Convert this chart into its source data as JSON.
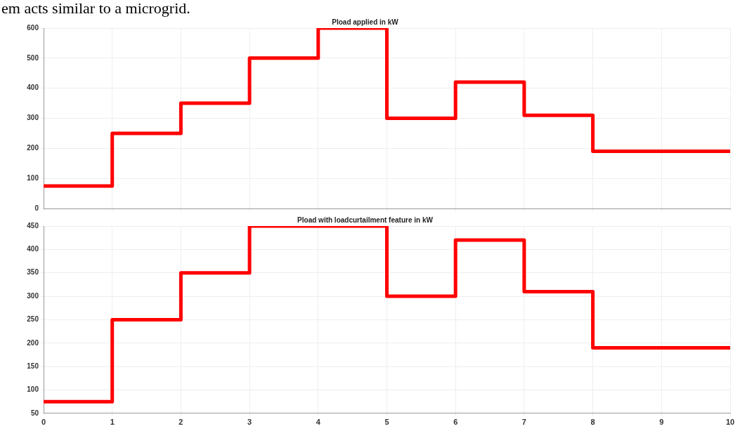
{
  "chart_data": [
    {
      "type": "step",
      "title": "Pload applied in kW",
      "annotations": [
        "em acts similar to a microgrid."
      ],
      "x": [
        0,
        1,
        2,
        3,
        4,
        5,
        6,
        7,
        8,
        10
      ],
      "series": [
        {
          "color": "#ff0000",
          "values": [
            75,
            250,
            350,
            500,
            600,
            300,
            420,
            310,
            190,
            190
          ]
        }
      ],
      "xlim": [
        0,
        10
      ],
      "xticks": [
        0,
        1,
        2,
        3,
        4,
        5,
        6,
        7,
        8,
        9,
        10
      ],
      "ylim": [
        0,
        600
      ],
      "yticks": [
        0,
        100,
        200,
        300,
        400,
        500,
        600
      ],
      "tick_labels": "y",
      "grid": true,
      "legend": false
    },
    {
      "type": "step",
      "title": "Pload with loadcurtailment feature in kW",
      "x": [
        0,
        1,
        2,
        3,
        4,
        5,
        6,
        7,
        8,
        10
      ],
      "series": [
        {
          "color": "#ff0000",
          "values": [
            75,
            250,
            350,
            450,
            450,
            300,
            420,
            310,
            190,
            190
          ]
        }
      ],
      "xlim": [
        0,
        10
      ],
      "xticks": [
        0,
        1,
        2,
        3,
        4,
        5,
        6,
        7,
        8,
        9,
        10
      ],
      "ylim": [
        50,
        450
      ],
      "yticks": [
        50,
        100,
        150,
        200,
        250,
        300,
        350,
        400,
        450
      ],
      "grid": true,
      "legend": false
    }
  ]
}
